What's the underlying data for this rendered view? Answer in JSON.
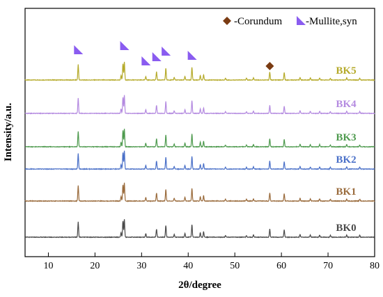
{
  "chart_data": {
    "type": "line",
    "xlabel": "2θ/degree",
    "ylabel": "Intensity/a.u.",
    "xlim": [
      5,
      80
    ],
    "xticks": [
      "10",
      "20",
      "30",
      "40",
      "50",
      "60",
      "70",
      "80"
    ],
    "xtick_values": [
      10,
      20,
      30,
      40,
      50,
      60,
      70,
      80
    ],
    "grid": false,
    "legend": {
      "placement": "top-right",
      "items": [
        {
          "label": "-Corundum",
          "marker": "diamond",
          "color": "#7a3b12"
        },
        {
          "label": "-Mullite,syn",
          "marker": "triangle",
          "color": "#8a5cf0"
        }
      ]
    },
    "series": [
      {
        "name": "BK5",
        "color": "#b5aa2a",
        "offset": 5
      },
      {
        "name": "BK4",
        "color": "#b48ae0",
        "offset": 4
      },
      {
        "name": "BK3",
        "color": "#4e9a4e",
        "offset": 3
      },
      {
        "name": "BK2",
        "color": "#4a70c8",
        "offset": 2
      },
      {
        "name": "BK1",
        "color": "#9a6b3c",
        "offset": 1
      },
      {
        "name": "BK0",
        "color": "#4a4a4a",
        "offset": 0
      }
    ],
    "peaks": [
      {
        "x": 16.4,
        "h": 0.85
      },
      {
        "x": 25.6,
        "h": 0.25
      },
      {
        "x": 26.0,
        "h": 0.9
      },
      {
        "x": 26.3,
        "h": 1.0
      },
      {
        "x": 30.9,
        "h": 0.2
      },
      {
        "x": 33.2,
        "h": 0.45
      },
      {
        "x": 35.2,
        "h": 0.65
      },
      {
        "x": 37.0,
        "h": 0.15
      },
      {
        "x": 39.3,
        "h": 0.2
      },
      {
        "x": 40.8,
        "h": 0.7
      },
      {
        "x": 42.6,
        "h": 0.25
      },
      {
        "x": 43.3,
        "h": 0.3
      },
      {
        "x": 48.0,
        "h": 0.1
      },
      {
        "x": 52.5,
        "h": 0.1
      },
      {
        "x": 54.0,
        "h": 0.12
      },
      {
        "x": 57.5,
        "h": 0.45
      },
      {
        "x": 60.6,
        "h": 0.4
      },
      {
        "x": 64.0,
        "h": 0.15
      },
      {
        "x": 66.2,
        "h": 0.12
      },
      {
        "x": 68.2,
        "h": 0.12
      },
      {
        "x": 70.5,
        "h": 0.1
      },
      {
        "x": 74.0,
        "h": 0.12
      },
      {
        "x": 76.8,
        "h": 0.1
      }
    ],
    "mullite_markers": [
      16.4,
      26.3,
      30.9,
      33.2,
      35.2,
      40.8
    ],
    "corundum_markers": [
      57.5
    ]
  }
}
